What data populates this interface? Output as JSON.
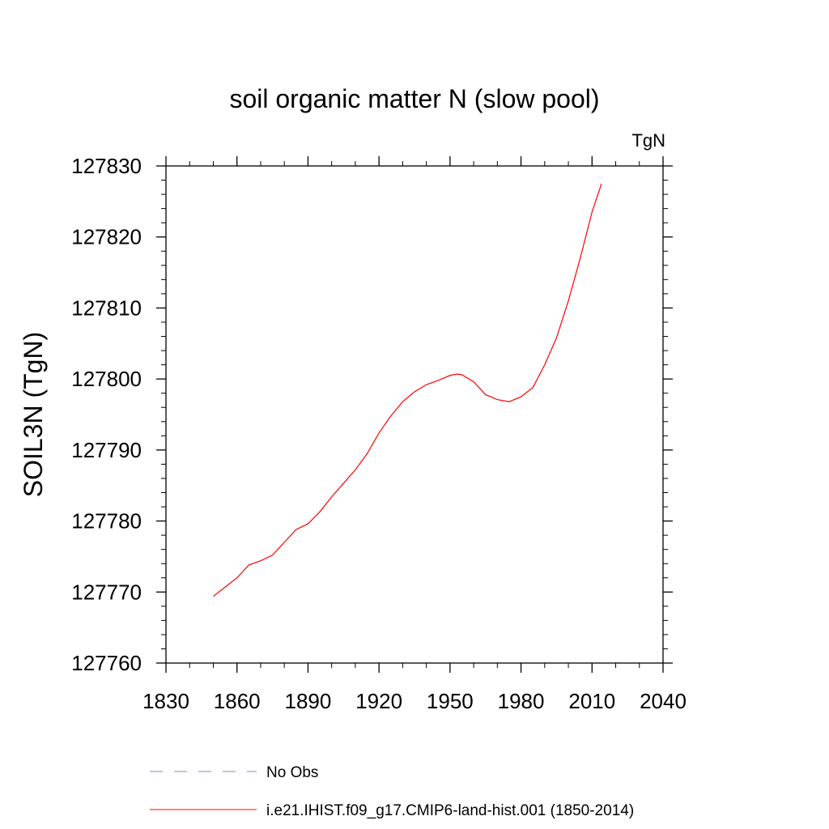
{
  "chart_data": {
    "type": "line",
    "title": "soil organic matter N (slow pool)",
    "units": "TgN",
    "ylabel": "SOIL3N  (TgN)",
    "xlabel": "",
    "xlim": [
      1830,
      2040
    ],
    "ylim": [
      127760,
      127830
    ],
    "x_ticks": [
      "1830",
      "1860",
      "1890",
      "1920",
      "1950",
      "1980",
      "2010",
      "2040"
    ],
    "y_ticks": [
      "127760",
      "127770",
      "127780",
      "127790",
      "127800",
      "127810",
      "127820",
      "127830"
    ],
    "grid": false,
    "legend_position": "bottom",
    "series": [
      {
        "name": "No Obs",
        "color": "#8a82c8",
        "style": "dashed",
        "x": [],
        "y": []
      },
      {
        "name": "i.e21.IHIST.f09_g17.CMIP6-land-hist.001 (1850-2014)",
        "color": "#ff0000",
        "style": "solid",
        "x": [
          1850,
          1855,
          1860,
          1865,
          1870,
          1875,
          1880,
          1885,
          1890,
          1895,
          1900,
          1905,
          1910,
          1915,
          1920,
          1925,
          1930,
          1935,
          1940,
          1945,
          1950,
          1953,
          1955,
          1960,
          1965,
          1970,
          1975,
          1980,
          1985,
          1990,
          1995,
          2000,
          2005,
          2010,
          2014
        ],
        "y": [
          127769.4,
          127770.7,
          127772.0,
          127773.8,
          127774.4,
          127775.2,
          127777.0,
          127778.8,
          127779.6,
          127781.3,
          127783.4,
          127785.3,
          127787.2,
          127789.5,
          127792.4,
          127794.8,
          127796.8,
          127798.2,
          127799.2,
          127799.8,
          127800.5,
          127800.7,
          127800.6,
          127799.6,
          127797.8,
          127797.1,
          127796.8,
          127797.5,
          127798.8,
          127802.0,
          127805.8,
          127811.0,
          127817.0,
          127823.5,
          127827.5
        ]
      }
    ]
  }
}
